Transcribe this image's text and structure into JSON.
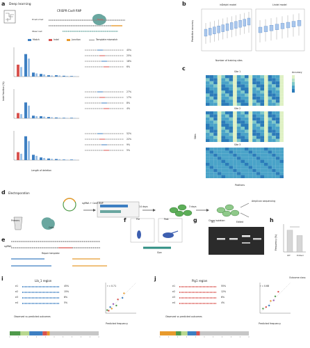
{
  "panel_letters": [
    "a",
    "b",
    "c",
    "d",
    "e",
    "f",
    "g",
    "h",
    "i",
    "j"
  ],
  "colors": {
    "blue": "#3d7fc2",
    "red": "#d9534f",
    "orange": "#e89a2c",
    "teal": "#2f8f83",
    "green": "#4f9a4a",
    "lightgreen": "#b9d88f",
    "gray": "#9a9a9a"
  },
  "a": {
    "title": "Deep learning",
    "subtitle": "CRISPR-Cas9 RNP",
    "row_labels": [
      "Predicted",
      "Observed"
    ],
    "legend": [
      "Match",
      "Indel",
      "Junction",
      "Repair",
      "Template mismatch"
    ],
    "yaxis": "Indel fraction (%)",
    "xaxis": "Length of deletion",
    "sections": [
      {
        "label": "1",
        "values": [
          0.45,
          0.85,
          0.15,
          0.1,
          0.05,
          0.05,
          0.03,
          0.02
        ],
        "pcts": [
          "45%",
          "25%",
          "18%",
          "6%"
        ]
      },
      {
        "label": "2",
        "values": [
          0.2,
          0.6,
          0.1,
          0.08,
          0.05,
          0.03,
          0.02,
          0.02
        ],
        "pcts": [
          "27%",
          "17%",
          "8%",
          "4%"
        ]
      },
      {
        "label": "3",
        "values": [
          0.3,
          0.9,
          0.2,
          0.1,
          0.06,
          0.04,
          0.02,
          0.02
        ],
        "pcts": [
          "52%",
          "22%",
          "9%",
          "5%"
        ]
      }
    ]
  },
  "b": {
    "ylabel": "Prediction accuracy",
    "xlabel": "Number of training sites",
    "titles": [
      "inDelphi model",
      "Lindel model"
    ]
  },
  "c": {
    "titles": [
      "Site 1",
      "Site 2",
      "Site 3"
    ],
    "ylabel": "Sites",
    "xlabel": "Positions",
    "cbar_label": "Accuracy"
  },
  "d": {
    "steps": [
      "Electroporation",
      "sgRNA + Cas9 RNP",
      "Primers",
      "Cells",
      "3 days",
      "Cell sorting",
      "Clone isolation",
      "Amplicon sequencing"
    ],
    "days": "14 days"
  },
  "e": {
    "labels": [
      "sgRNA",
      "Repair template",
      "Forward",
      "Reverse"
    ]
  },
  "f": {
    "labels": [
      "Pre",
      "Post"
    ],
    "xlabel": "Size"
  },
  "g": {
    "labels": [
      "WT",
      "Edited",
      "Control"
    ]
  },
  "h": {
    "ylabel": "Frequency (%)",
    "categories": [
      "WT",
      "Edited"
    ],
    "values": [
      0.82,
      0.62
    ]
  },
  "i": {
    "title": "Lib_1 region",
    "ylabel": "Observed frequency",
    "xlabel": "Predicted frequency",
    "rows": [
      "e1",
      "e2",
      "e3",
      "e4"
    ],
    "pcts": [
      "45%",
      "15%",
      "8%",
      "5%"
    ],
    "r_value": "r = 0.71",
    "scale_title": "Observed vs predicted outcomes",
    "seg_colors": [
      "#4f9a4a",
      "#b9d88f",
      "#3d7fc2",
      "#d9534f",
      "#e89a2c",
      "#c7c7c7"
    ],
    "seg_values": [
      0.12,
      0.1,
      0.15,
      0.05,
      0.03,
      0.55
    ],
    "points": [
      [
        0.05,
        0.1
      ],
      [
        0.1,
        0.08
      ],
      [
        0.15,
        0.2
      ],
      [
        0.2,
        0.15
      ],
      [
        0.25,
        0.3
      ],
      [
        0.35,
        0.25
      ],
      [
        0.4,
        0.45
      ],
      [
        0.55,
        0.5
      ],
      [
        0.6,
        0.65
      ]
    ]
  },
  "j": {
    "title": "Pig1 region",
    "ylabel": "Observed frequency",
    "xlabel": "Predicted frequency",
    "rows": [
      "e1",
      "e2",
      "e3",
      "e4"
    ],
    "pcts": [
      "55%",
      "12%",
      "6%",
      "4%"
    ],
    "r_value": "r = 0.68",
    "legend_title": "Outcome class",
    "scale_title": "Observed vs predicted outcomes",
    "seg_colors": [
      "#e89a2c",
      "#4f9a4a",
      "#b9d88f",
      "#3d7fc2",
      "#d9534f",
      "#c7c7c7"
    ],
    "seg_values": [
      0.18,
      0.06,
      0.07,
      0.1,
      0.04,
      0.55
    ],
    "points": [
      [
        0.1,
        0.15
      ],
      [
        0.2,
        0.2
      ],
      [
        0.3,
        0.25
      ],
      [
        0.35,
        0.4
      ],
      [
        0.45,
        0.42
      ],
      [
        0.5,
        0.55
      ],
      [
        0.6,
        0.7
      ]
    ]
  }
}
